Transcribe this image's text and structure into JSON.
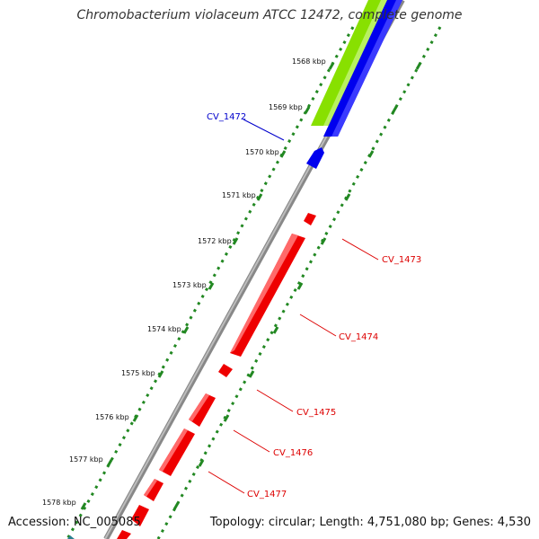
{
  "title": "Chromobacterium violaceum ATCC 12472, complete genome",
  "footer": {
    "accession": "Accession: NC_005085",
    "summary": "Topology: circular; Length: 4,751,080 bp; Genes: 4,530"
  },
  "ruler_labels": [
    "1568 kbp",
    "1569 kbp",
    "1570 kbp",
    "1571 kbp",
    "1572 kbp",
    "1573 kbp",
    "1574 kbp",
    "1575 kbp",
    "1576 kbp",
    "1577 kbp",
    "1578 kbp"
  ],
  "gene_labels": [
    {
      "name": "CV_1472",
      "color": "#0000cc"
    },
    {
      "name": "CV_1473",
      "color": "#dd0000"
    },
    {
      "name": "CV_1474",
      "color": "#dd0000"
    },
    {
      "name": "CV_1475",
      "color": "#dd0000"
    },
    {
      "name": "CV_1476",
      "color": "#dd0000"
    },
    {
      "name": "CV_1477",
      "color": "#dd0000"
    }
  ],
  "colors": {
    "forward_gene": "#0000ee",
    "reverse_gene": "#ee0000",
    "feature_green": "#88e000",
    "backbone": "#888888",
    "ruler_ticks": "#228822"
  }
}
